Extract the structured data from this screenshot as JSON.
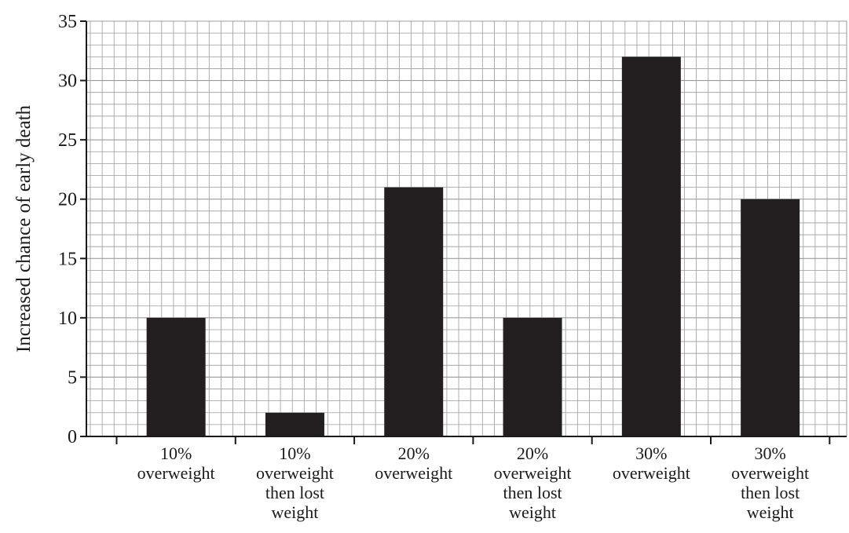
{
  "chart_data": {
    "type": "bar",
    "title": "",
    "xlabel": "",
    "ylabel": "Increased chance of early death",
    "categories": [
      [
        "10%",
        "overweight"
      ],
      [
        "10%",
        "overweight",
        "then lost",
        "weight"
      ],
      [
        "20%",
        "overweight"
      ],
      [
        "20%",
        "overweight",
        "then lost",
        "weight"
      ],
      [
        "30%",
        "overweight"
      ],
      [
        "30%",
        "overweight",
        "then lost",
        "weight"
      ]
    ],
    "values": [
      10,
      2,
      21,
      10,
      32,
      20
    ],
    "ylim": [
      0,
      35
    ],
    "yticks": [
      "0",
      "5",
      "10",
      "15",
      "20",
      "25",
      "30",
      "35"
    ],
    "grid": true,
    "legend": "none",
    "colors": {
      "bar": "#231f20",
      "grid": "#9b9b9b",
      "axis": "#1a1a1a"
    }
  }
}
